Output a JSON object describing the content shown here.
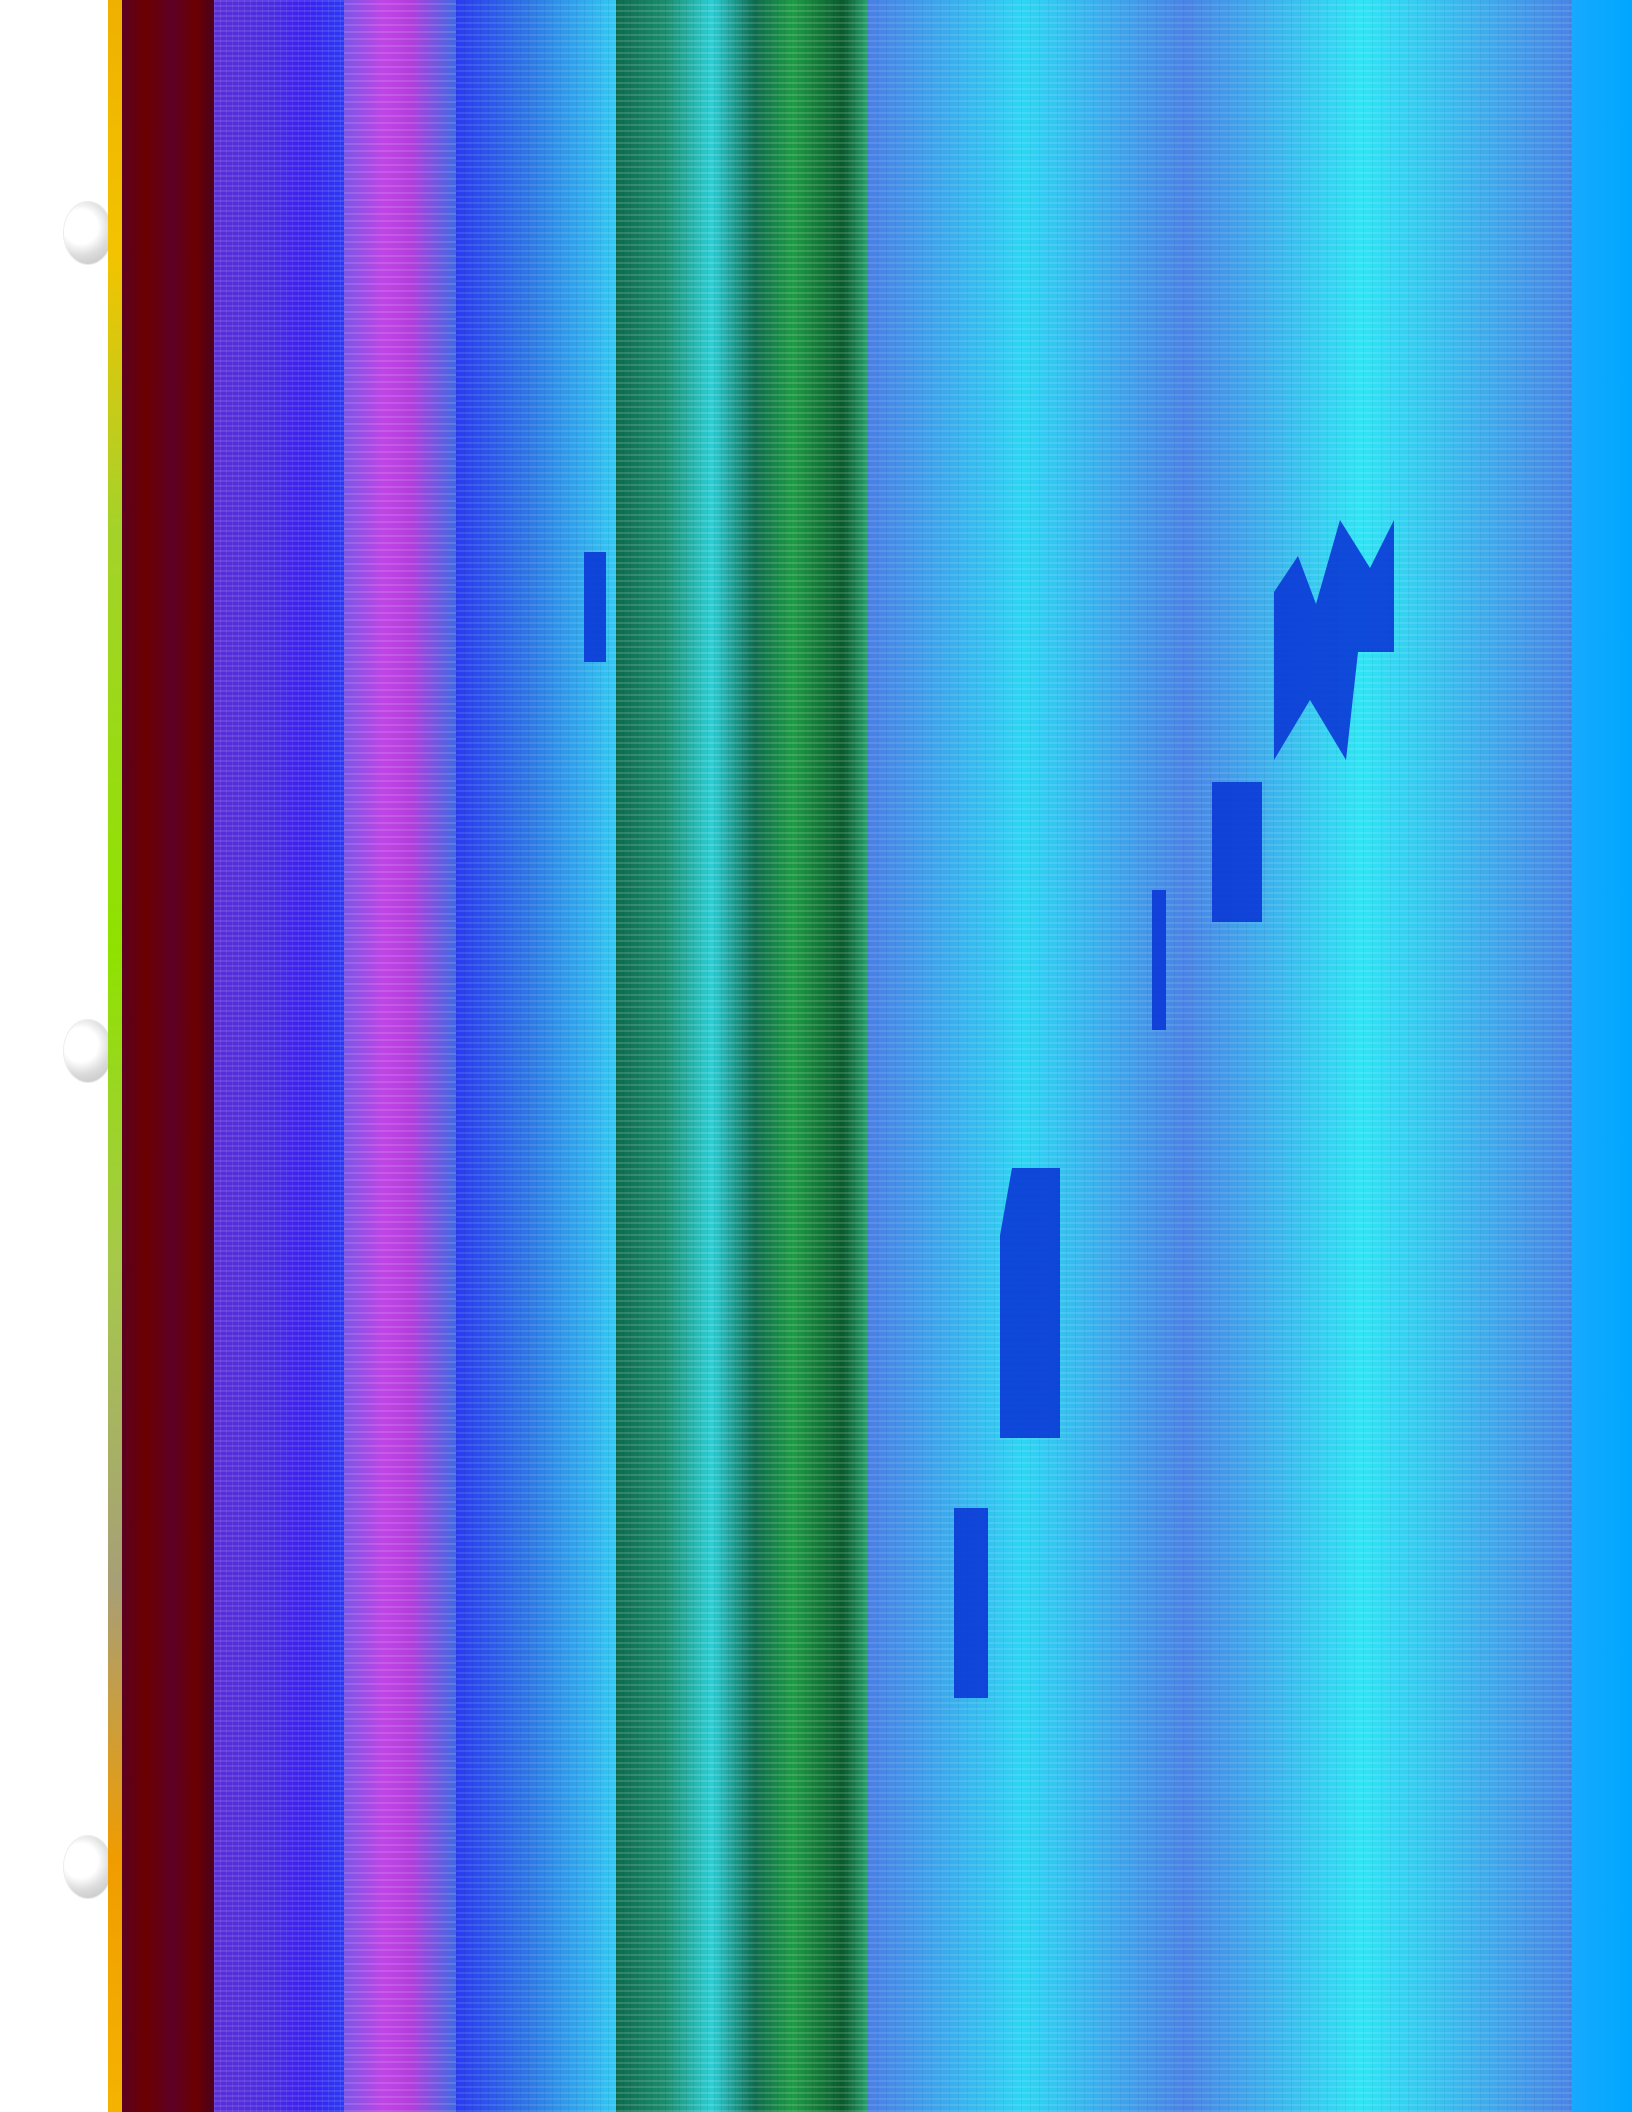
{
  "screen": {
    "description_text": ""
  }
}
